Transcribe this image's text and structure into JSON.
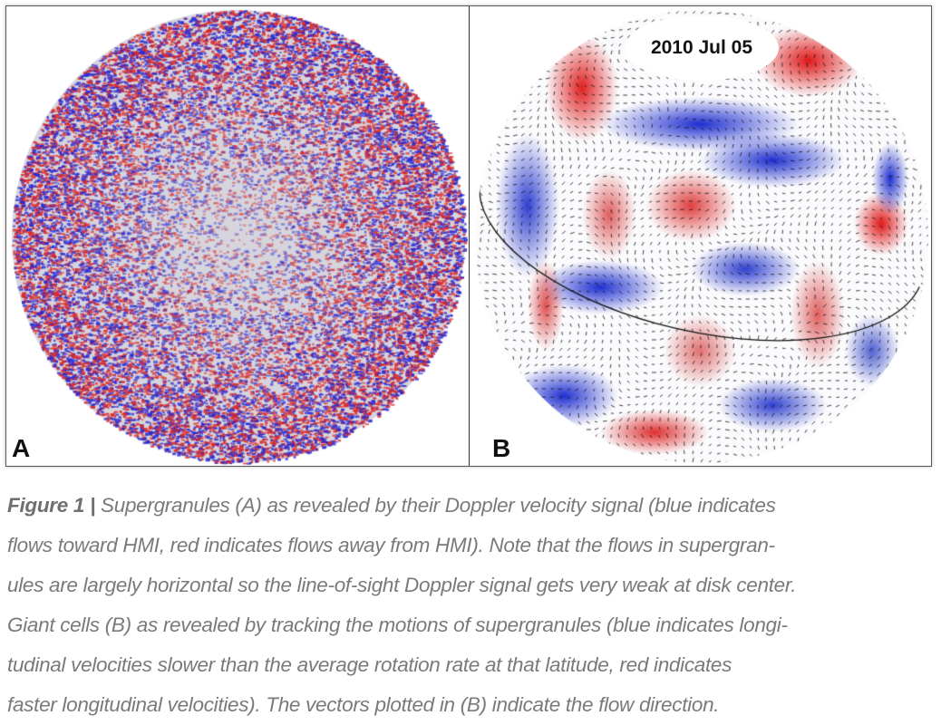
{
  "figure": {
    "panel_a_label": "A",
    "panel_b_label": "B",
    "panel_b_date": "2010 Jul 05",
    "colors": {
      "blue": "#1f2fd0",
      "red": "#e01818",
      "neutral": "#d8d8dc"
    }
  },
  "caption": {
    "figure_label": "Figure 1 |",
    "lines": [
      " Supergranules (A) as revealed by their Doppler velocity signal (blue indicates",
      "flows toward HMI, red indicates flows away from HMI). Note that the flows in supergran-",
      "ules are largely horizontal so the line-of-sight Doppler signal gets very weak at disk center.",
      "Giant cells (B) as revealed by tracking the motions of supergranules (blue indicates longi-",
      "tudinal velocities slower than the average rotation rate at that latitude, red indicates",
      "faster longitudinal velocities). The vectors plotted in (B) indicate the flow direction."
    ]
  }
}
